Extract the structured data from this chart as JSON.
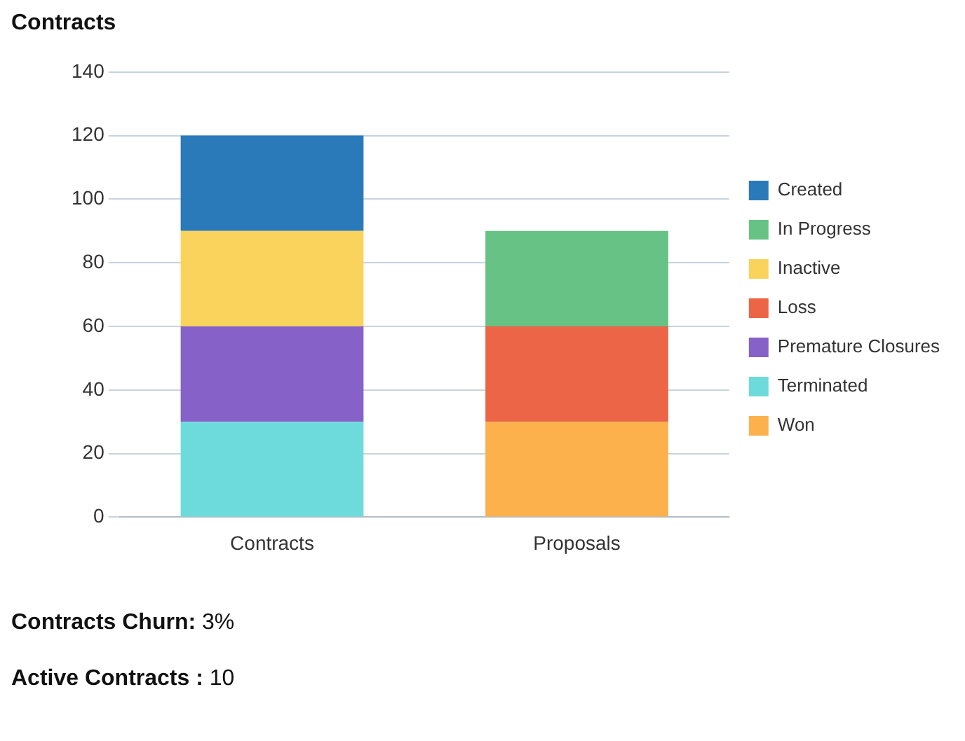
{
  "chart_data": {
    "type": "bar",
    "title": "Contracts",
    "categories": [
      "Contracts",
      "Proposals"
    ],
    "stacked": true,
    "ylim": [
      0,
      140
    ],
    "yticks": [
      0,
      20,
      40,
      60,
      80,
      100,
      120,
      140
    ],
    "grid": "y",
    "legend": "right",
    "series": [
      {
        "name": "Won",
        "color": "#fdb14c",
        "values": [
          null,
          30
        ]
      },
      {
        "name": "Terminated",
        "color": "#6ddbdb",
        "values": [
          30,
          null
        ]
      },
      {
        "name": "Premature Closures",
        "color": "#8561c8",
        "values": [
          30,
          null
        ]
      },
      {
        "name": "Loss",
        "color": "#ec6546",
        "values": [
          null,
          30
        ]
      },
      {
        "name": "Inactive",
        "color": "#f9d35c",
        "values": [
          30,
          null
        ]
      },
      {
        "name": "In Progress",
        "color": "#66c285",
        "values": [
          null,
          30
        ]
      },
      {
        "name": "Created",
        "color": "#2a7ab9",
        "values": [
          30,
          null
        ]
      }
    ],
    "annotations": [
      "Contracts Churn: 3%",
      "Active Contracts : 10"
    ]
  }
}
